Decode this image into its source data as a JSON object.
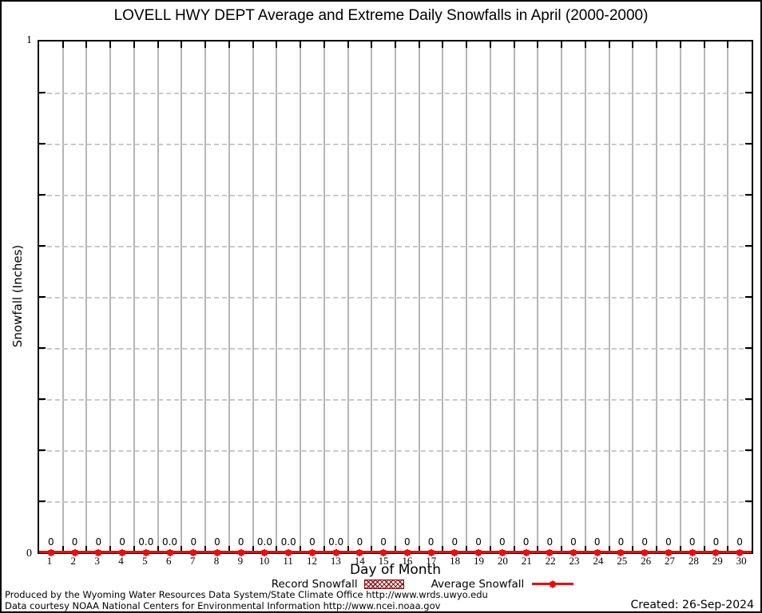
{
  "title": "LOVELL HWY DEPT Average and Extreme Daily Snowfalls in April (2000-2000)",
  "y_axis": {
    "label": "Snowfall (Inches)",
    "top_tick": "1",
    "bottom_tick": "0"
  },
  "x_axis": {
    "label": "Day of Month"
  },
  "legend": {
    "record_label": "Record Snowfall",
    "average_label": "Average Snowfall"
  },
  "footer": {
    "line1": "Produced by the Wyoming Water Resources Data System/State Climate Office http://www.wrds.uwyo.edu",
    "line2": "Data courtesy NOAA National Centers for Environmental Information http://www.ncei.noaa.gov",
    "created": "Created: 26-Sep-2024"
  },
  "colors": {
    "average_series": "#e60f0f",
    "record_series": "#8b1212",
    "vertical_grid": "#b6b6b6",
    "horizontal_grid": "#c9c9c9",
    "axis": "#000000"
  },
  "chart_data": {
    "type": "line",
    "title": "LOVELL HWY DEPT Average and Extreme Daily Snowfalls in April (2000-2000)",
    "xlabel": "Day of Month",
    "ylabel": "Snowfall (Inches)",
    "ylim": [
      0,
      1
    ],
    "y_tick_labels_shown": [
      "0",
      "1"
    ],
    "y_minor_tick_step": 0.1,
    "grid": true,
    "legend_position": "bottom",
    "x": [
      1,
      2,
      3,
      4,
      5,
      6,
      7,
      8,
      9,
      10,
      11,
      12,
      13,
      14,
      15,
      16,
      17,
      18,
      19,
      20,
      21,
      22,
      23,
      24,
      25,
      26,
      27,
      28,
      29,
      30
    ],
    "series": [
      {
        "name": "Record Snowfall",
        "style": "bar",
        "values": [
          0,
          0,
          0,
          0,
          0,
          0,
          0,
          0,
          0,
          0,
          0,
          0,
          0,
          0,
          0,
          0,
          0,
          0,
          0,
          0,
          0,
          0,
          0,
          0,
          0,
          0,
          0,
          0,
          0,
          0
        ]
      },
      {
        "name": "Average Snowfall",
        "style": "line-marker",
        "values": [
          0,
          0,
          0,
          0,
          0,
          0,
          0,
          0,
          0,
          0,
          0,
          0,
          0,
          0,
          0,
          0,
          0,
          0,
          0,
          0,
          0,
          0,
          0,
          0,
          0,
          0,
          0,
          0,
          0,
          0
        ]
      }
    ],
    "point_labels": [
      "0",
      "0",
      "0",
      "0",
      "0.0",
      "0.0",
      "0",
      "0",
      "0",
      "0.0",
      "0.0",
      "0",
      "0.0",
      "0",
      "0",
      "0",
      "0",
      "0",
      "0",
      "0",
      "0",
      "0",
      "0",
      "0",
      "0",
      "0",
      "0",
      "0",
      "0",
      "0"
    ]
  }
}
